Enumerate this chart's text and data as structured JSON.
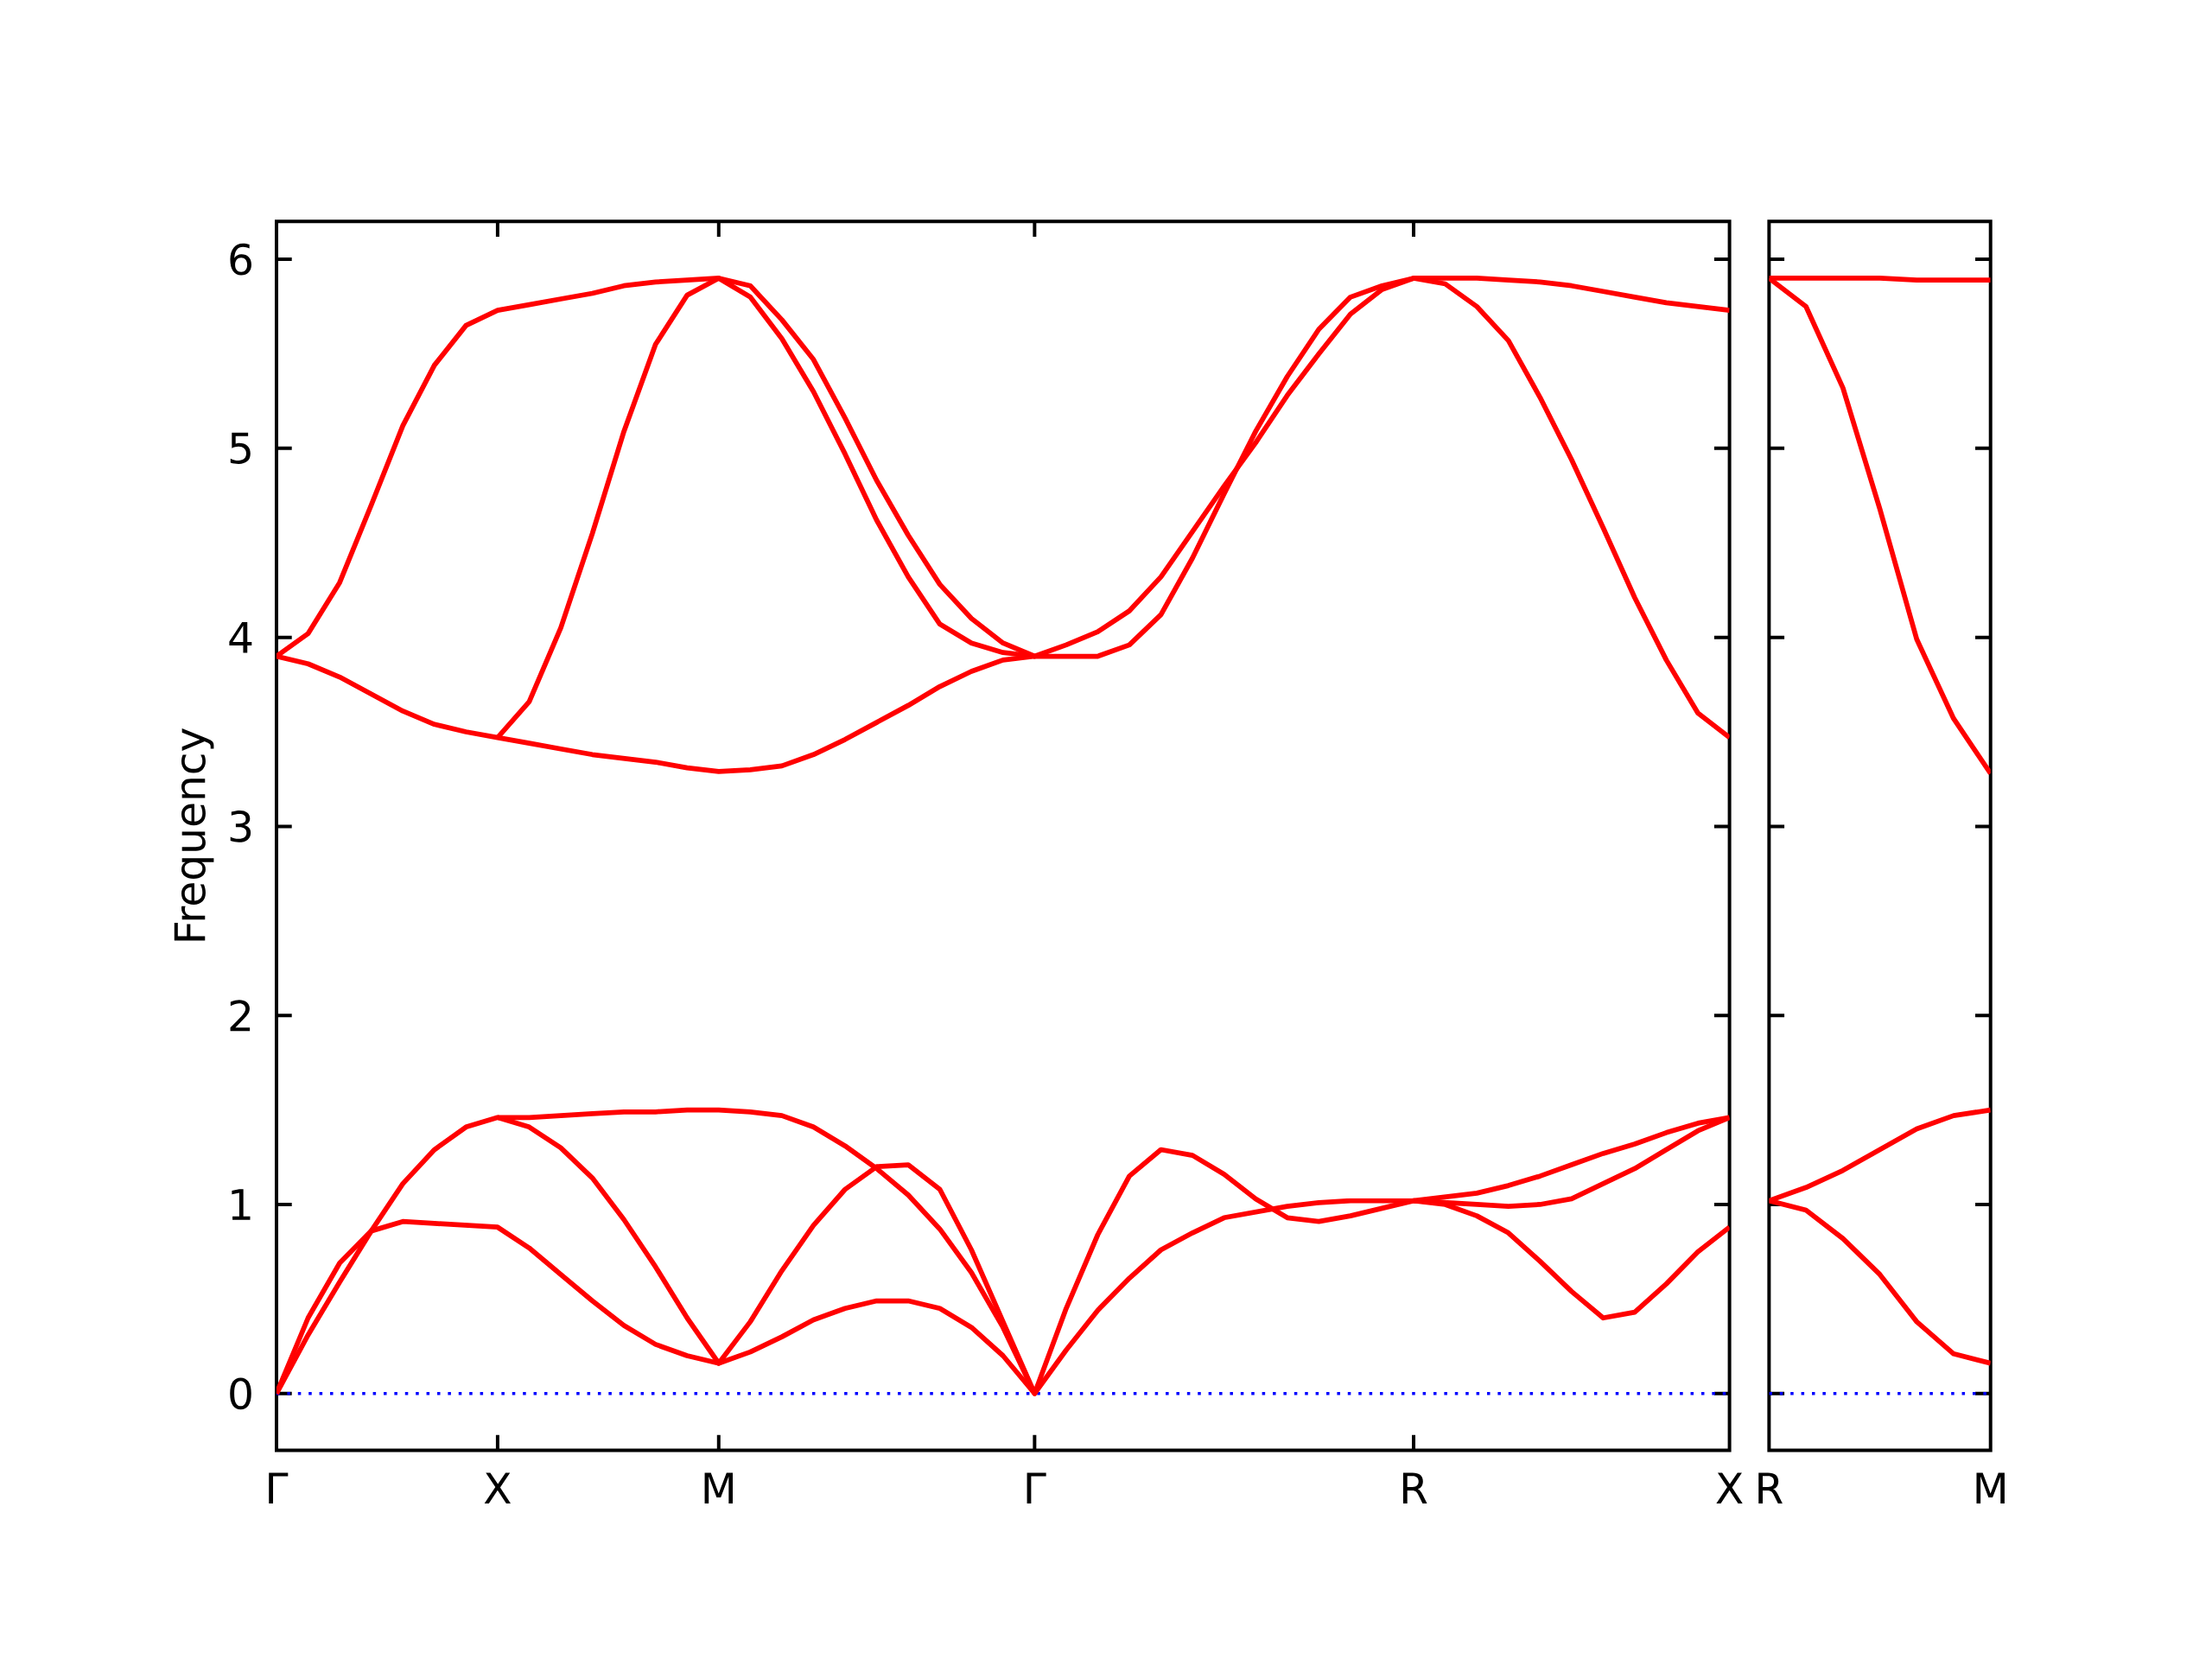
{
  "chart_data": [
    {
      "type": "line",
      "ylabel": "Frequency",
      "categories": [
        "Γ",
        null,
        null,
        null,
        null,
        null,
        null,
        "X",
        null,
        null,
        null,
        null,
        null,
        null,
        "M",
        null,
        null,
        null,
        null,
        null,
        null,
        null,
        null,
        null,
        "Γ",
        null,
        null,
        null,
        null,
        null,
        null,
        null,
        null,
        null,
        null,
        null,
        "R",
        null,
        null,
        null,
        null,
        null,
        null,
        null,
        null,
        null,
        "X"
      ],
      "ylim": [
        -0.3,
        6.2
      ],
      "yticks": [
        0,
        1,
        2,
        3,
        4,
        5,
        6
      ],
      "ref_lines": [
        {
          "axis": "y",
          "value": 0,
          "color": "#0000ff",
          "line_style": "dotted"
        }
      ],
      "series": [
        {
          "color": "#ff0000",
          "values": [
            0,
            0.4,
            0.69,
            0.86,
            0.91,
            0.9,
            0.89,
            0.88,
            0.77,
            0.63,
            0.49,
            0.36,
            0.26,
            0.2,
            0.16,
            0.22,
            0.3,
            0.39,
            0.45,
            0.49,
            0.49,
            0.45,
            0.35,
            0.2,
            0,
            0.23,
            0.44,
            0.61,
            0.76,
            0.85,
            0.93,
            0.96,
            0.99,
            1.01,
            1.02,
            1.02,
            1.02,
            1.0,
            0.94,
            0.85,
            0.7,
            0.54,
            0.4,
            0.43,
            0.58,
            0.75,
            0.88
          ]
        },
        {
          "color": "#ff0000",
          "values": [
            0,
            0.31,
            0.59,
            0.86,
            1.11,
            1.29,
            1.41,
            1.46,
            1.41,
            1.3,
            1.14,
            0.92,
            0.67,
            0.4,
            0.16,
            0.38,
            0.65,
            0.89,
            1.08,
            1.2,
            1.21,
            1.08,
            0.76,
            0.38,
            0,
            0.45,
            0.84,
            1.15,
            1.29,
            1.26,
            1.16,
            1.03,
            0.93,
            0.91,
            0.94,
            0.98,
            1.02,
            1.01,
            1.0,
            0.99,
            1.0,
            1.03,
            1.11,
            1.19,
            1.29,
            1.39,
            1.46
          ]
        },
        {
          "color": "#ff0000",
          "values": [
            null,
            null,
            null,
            null,
            null,
            null,
            null,
            1.46,
            1.46,
            1.47,
            1.48,
            1.49,
            1.49,
            1.5,
            1.5,
            1.49,
            1.47,
            1.41,
            1.31,
            1.19,
            1.05,
            0.87,
            0.64,
            0.35,
            0,
            null,
            null,
            null,
            null,
            null,
            null,
            null,
            null,
            null,
            null,
            null,
            1.02,
            1.04,
            1.06,
            1.1,
            1.15,
            1.21,
            1.27,
            1.32,
            1.38,
            1.43,
            1.46
          ]
        },
        {
          "color": "#ff0000",
          "values": [
            3.9,
            3.86,
            3.79,
            3.7,
            3.61,
            3.54,
            3.5,
            3.47,
            3.44,
            3.41,
            3.38,
            3.36,
            3.34,
            3.31,
            3.29,
            3.3,
            3.32,
            3.38,
            3.46,
            3.55,
            3.64,
            3.74,
            3.82,
            3.88,
            3.9,
            3.9,
            3.9,
            3.96,
            4.12,
            4.42,
            4.76,
            5.09,
            5.38,
            5.63,
            5.8,
            5.86,
            5.9,
            5.87,
            5.75,
            5.57,
            5.27,
            4.94,
            4.58,
            4.21,
            3.88,
            3.6,
            3.47
          ]
        },
        {
          "color": "#ff0000",
          "values": [
            3.9,
            4.02,
            4.29,
            4.7,
            5.12,
            5.44,
            5.65,
            5.73,
            5.76,
            5.79,
            5.82,
            5.86,
            5.88,
            5.89,
            5.9,
            5.86,
            5.68,
            5.47,
            5.16,
            4.83,
            4.54,
            4.28,
            4.1,
            3.97,
            3.9,
            3.96,
            4.03,
            4.14,
            4.32,
            4.56,
            4.8,
            5.03,
            5.28,
            5.5,
            5.71,
            5.84,
            5.9,
            5.9,
            5.9,
            5.89,
            5.88,
            5.86,
            5.83,
            5.8,
            5.77,
            5.75,
            5.73
          ]
        },
        {
          "color": "#ff0000",
          "values": [
            null,
            null,
            null,
            null,
            null,
            null,
            null,
            3.47,
            3.66,
            4.05,
            4.55,
            5.09,
            5.55,
            5.81,
            5.9,
            5.8,
            5.58,
            5.3,
            4.97,
            4.62,
            4.32,
            4.07,
            3.97,
            3.92,
            3.9,
            null,
            null,
            null,
            null,
            null,
            null,
            null,
            null,
            null,
            null,
            null,
            null,
            null,
            null,
            null,
            null,
            null,
            null,
            null,
            null,
            null,
            null
          ]
        }
      ]
    },
    {
      "type": "line",
      "tick_labels": "x",
      "categories": [
        "R",
        null,
        null,
        null,
        null,
        null,
        "M"
      ],
      "ylim": [
        -0.3,
        6.2
      ],
      "yticks": [
        0,
        1,
        2,
        3,
        4,
        5,
        6
      ],
      "ref_lines": [
        {
          "axis": "y",
          "value": 0,
          "color": "#0000ff",
          "line_style": "dotted"
        }
      ],
      "series": [
        {
          "color": "#ff0000",
          "values": [
            5.9,
            5.9,
            5.9,
            5.9,
            5.89,
            5.89,
            5.89
          ]
        },
        {
          "color": "#ff0000",
          "values": [
            5.9,
            5.75,
            5.32,
            4.68,
            3.99,
            3.57,
            3.28
          ]
        },
        {
          "color": "#ff0000",
          "values": [
            1.02,
            1.09,
            1.18,
            1.29,
            1.4,
            1.47,
            1.5
          ]
        },
        {
          "color": "#ff0000",
          "values": [
            1.02,
            0.97,
            0.82,
            0.63,
            0.38,
            0.21,
            0.16
          ]
        }
      ]
    }
  ]
}
